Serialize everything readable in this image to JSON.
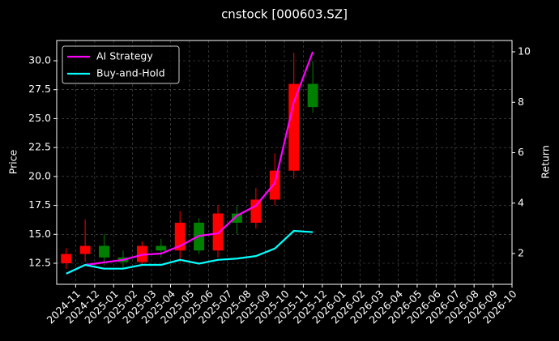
{
  "chart_data": {
    "type": "candlestick",
    "title": "cnstock [000603.SZ]",
    "y_label": "Price",
    "y2_label": "Return",
    "x": [
      "2024-10",
      "2024-11",
      "2024-12",
      "2025-01",
      "2025-02",
      "2025-03",
      "2025-04",
      "2025-05",
      "2025-06",
      "2025-07",
      "2025-08",
      "2025-09",
      "2025-10",
      "2025-11"
    ],
    "open": [
      12.5,
      13.3,
      14.0,
      13.0,
      12.6,
      14.0,
      13.6,
      16.0,
      13.6,
      16.8,
      16.0,
      18.0,
      20.5,
      28.0
    ],
    "high": [
      13.8,
      16.3,
      15.0,
      13.6,
      14.4,
      14.6,
      17.0,
      16.4,
      17.5,
      17.5,
      19.0,
      22.0,
      30.7,
      30.0
    ],
    "low": [
      12.0,
      12.6,
      12.3,
      12.0,
      12.4,
      13.0,
      12.6,
      13.3,
      13.0,
      15.0,
      15.5,
      17.5,
      19.8,
      25.5
    ],
    "close": [
      13.3,
      14.0,
      13.0,
      12.6,
      14.0,
      13.6,
      16.0,
      13.6,
      16.8,
      16.0,
      18.0,
      20.5,
      28.0,
      26.0
    ],
    "up_color": "#ff0000",
    "down_color": "#008000",
    "series": [
      {
        "name": "AI Strategy",
        "color": "#ff00ff",
        "axis": "y2",
        "values": [
          1.2,
          1.55,
          1.65,
          1.75,
          1.95,
          2.0,
          2.3,
          2.7,
          2.8,
          3.5,
          3.9,
          4.8,
          8.0,
          10.0
        ]
      },
      {
        "name": "Buy-and-Hold",
        "color": "#00ffff",
        "axis": "y2",
        "values": [
          1.2,
          1.55,
          1.4,
          1.4,
          1.55,
          1.55,
          1.75,
          1.6,
          1.75,
          1.8,
          1.9,
          2.2,
          2.9,
          2.85
        ]
      }
    ],
    "xlim": [
      "2024-10",
      "2026-10"
    ],
    "xticks": [
      "2024-11",
      "2024-12",
      "2025-01",
      "2025-02",
      "2025-03",
      "2025-04",
      "2025-05",
      "2025-06",
      "2025-07",
      "2025-08",
      "2025-09",
      "2025-10",
      "2025-11",
      "2025-12",
      "2026-01",
      "2026-02",
      "2026-03",
      "2026-04",
      "2026-05",
      "2026-06",
      "2026-07",
      "2026-08",
      "2026-09",
      "2026-10"
    ],
    "ylim": [
      10.68,
      31.75
    ],
    "yticks": [
      12.5,
      {
        "value": 15,
        "label": "15.0"
      },
      17.5,
      {
        "value": 20,
        "label": "20.0"
      },
      22.5,
      {
        "value": 25,
        "label": "25.0"
      },
      27.5,
      {
        "value": 30,
        "label": "30.0"
      }
    ],
    "y2lim": [
      0.78,
      10.45
    ],
    "y2ticks": [
      2,
      4,
      6,
      8,
      10
    ],
    "grid": true,
    "legend": "upper-left"
  }
}
